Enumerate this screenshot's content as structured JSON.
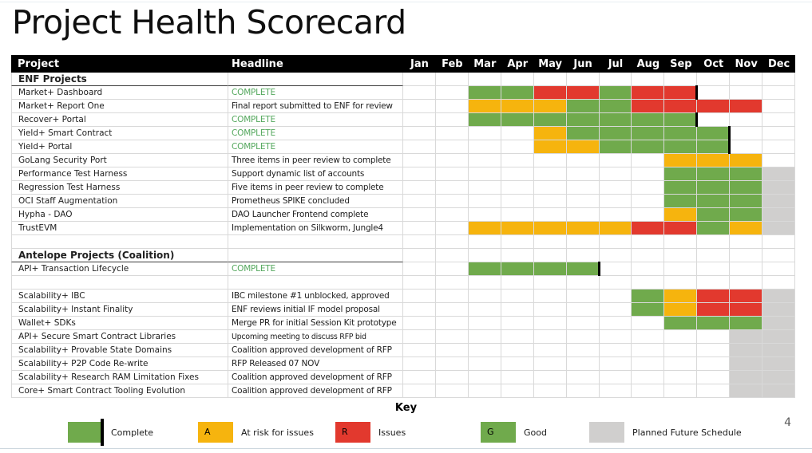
{
  "title": "Project Health Scorecard",
  "page_number": "4",
  "table": {
    "columns": {
      "project": "Project",
      "headline": "Headline"
    },
    "months": [
      "Jan",
      "Feb",
      "Mar",
      "Apr",
      "May",
      "Jun",
      "Jul",
      "Aug",
      "Sep",
      "Oct",
      "Nov",
      "Dec"
    ],
    "status_colors": {
      "G": "#70AA4C",
      "A": "#F6B40E",
      "R": "#E2392E",
      "P": "#D0CFCE"
    },
    "status_meanings": {
      "G": "Good / Complete",
      "A": "At risk for issues",
      "R": "Issues",
      "P": "Planned Future Schedule"
    },
    "rows": [
      {
        "type": "section",
        "project": "ENF Projects"
      },
      {
        "type": "item",
        "project": "Market+ Dashboard",
        "headline": "COMPLETE",
        "headline_style": "complete",
        "cells": [
          "",
          "",
          "G",
          "G",
          "R",
          "R",
          "G",
          "R",
          "R",
          "",
          "",
          ""
        ],
        "milestone_after_index": 8
      },
      {
        "type": "item",
        "project": "Market+ Report One",
        "headline": "Final report submitted to ENF for review",
        "cells": [
          "",
          "",
          "A",
          "A",
          "A",
          "G",
          "G",
          "R",
          "R",
          "R",
          "R",
          ""
        ],
        "milestone_after_index": null
      },
      {
        "type": "item",
        "project": "Recover+ Portal",
        "headline": "COMPLETE",
        "headline_style": "complete",
        "cells": [
          "",
          "",
          "G",
          "G",
          "G",
          "G",
          "G",
          "G",
          "G",
          "",
          "",
          ""
        ],
        "milestone_after_index": 8
      },
      {
        "type": "item",
        "project": "Yield+ Smart Contract",
        "headline": "COMPLETE",
        "headline_style": "complete",
        "cells": [
          "",
          "",
          "",
          "",
          "A",
          "G",
          "G",
          "G",
          "G",
          "G",
          "",
          ""
        ],
        "milestone_after_index": 9
      },
      {
        "type": "item",
        "project": "Yield+ Portal",
        "headline": "COMPLETE",
        "headline_style": "complete",
        "cells": [
          "",
          "",
          "",
          "",
          "A",
          "A",
          "G",
          "G",
          "G",
          "G",
          "",
          ""
        ],
        "milestone_after_index": 9
      },
      {
        "type": "item",
        "project": "GoLang Security Port",
        "headline": "Three items in peer review to complete",
        "cells": [
          "",
          "",
          "",
          "",
          "",
          "",
          "",
          "",
          "A",
          "A",
          "A",
          ""
        ],
        "milestone_after_index": null
      },
      {
        "type": "item",
        "project": "Performance Test Harness",
        "headline": "Support dynamic list of accounts",
        "cells": [
          "",
          "",
          "",
          "",
          "",
          "",
          "",
          "",
          "G",
          "G",
          "G",
          "P"
        ],
        "milestone_after_index": null
      },
      {
        "type": "item",
        "project": "Regression Test Harness",
        "headline": "Five items in peer review to complete",
        "cells": [
          "",
          "",
          "",
          "",
          "",
          "",
          "",
          "",
          "G",
          "G",
          "G",
          "P"
        ],
        "milestone_after_index": null
      },
      {
        "type": "item",
        "project": "OCI Staff Augmentation",
        "headline": "Prometheus SPIKE concluded",
        "cells": [
          "",
          "",
          "",
          "",
          "",
          "",
          "",
          "",
          "G",
          "G",
          "G",
          "P"
        ],
        "milestone_after_index": null
      },
      {
        "type": "item",
        "project": "Hypha - DAO",
        "headline": "DAO Launcher Frontend complete",
        "cells": [
          "",
          "",
          "",
          "",
          "",
          "",
          "",
          "",
          "A",
          "G",
          "G",
          "P"
        ],
        "milestone_after_index": null
      },
      {
        "type": "item",
        "project": "TrustEVM",
        "headline": "Implementation on Silkworm, Jungle4",
        "cells": [
          "",
          "",
          "A",
          "A",
          "A",
          "A",
          "A",
          "R",
          "R",
          "G",
          "A",
          "P"
        ],
        "milestone_after_index": null
      },
      {
        "type": "empty"
      },
      {
        "type": "section",
        "project": "Antelope Projects (Coalition)"
      },
      {
        "type": "item",
        "project": "API+ Transaction Lifecycle",
        "headline": "COMPLETE",
        "headline_style": "complete",
        "cells": [
          "",
          "",
          "G",
          "G",
          "G",
          "G",
          "",
          "",
          "",
          "",
          "",
          ""
        ],
        "milestone_after_index": 5
      },
      {
        "type": "empty"
      },
      {
        "type": "item",
        "project": "Scalability+ IBC",
        "headline": "IBC milestone #1 unblocked, approved",
        "cells": [
          "",
          "",
          "",
          "",
          "",
          "",
          "",
          "G",
          "A",
          "R",
          "R",
          "P"
        ],
        "milestone_after_index": null
      },
      {
        "type": "item",
        "project": "Scalability+ Instant Finality",
        "headline": "ENF reviews initial IF model proposal",
        "cells": [
          "",
          "",
          "",
          "",
          "",
          "",
          "",
          "G",
          "A",
          "R",
          "R",
          "P"
        ],
        "milestone_after_index": null
      },
      {
        "type": "item",
        "project": "Wallet+ SDKs",
        "headline": "Merge PR for initial Session Kit prototype",
        "cells": [
          "",
          "",
          "",
          "",
          "",
          "",
          "",
          "",
          "G",
          "G",
          "G",
          "P"
        ],
        "milestone_after_index": null
      },
      {
        "type": "item",
        "project": "API+ Secure Smart Contract Libraries",
        "headline": "Upcoming meeting to discuss RFP bid",
        "headline_style": "small",
        "cells": [
          "",
          "",
          "",
          "",
          "",
          "",
          "",
          "",
          "",
          "",
          "P",
          "P"
        ],
        "milestone_after_index": null
      },
      {
        "type": "item",
        "project": "Scalability+ Provable State Domains",
        "headline": "Coalition approved development of RFP",
        "cells": [
          "",
          "",
          "",
          "",
          "",
          "",
          "",
          "",
          "",
          "",
          "P",
          "P"
        ],
        "milestone_after_index": null
      },
      {
        "type": "item",
        "project": "Scalability+ P2P Code Re-write",
        "headline": "RFP Released 07 NOV",
        "cells": [
          "",
          "",
          "",
          "",
          "",
          "",
          "",
          "",
          "",
          "",
          "P",
          "P"
        ],
        "milestone_after_index": null
      },
      {
        "type": "item",
        "project": "Scalability+ Research RAM Limitation Fixes",
        "headline": "Coalition approved development of RFP",
        "cells": [
          "",
          "",
          "",
          "",
          "",
          "",
          "",
          "",
          "",
          "",
          "P",
          "P"
        ],
        "milestone_after_index": null
      },
      {
        "type": "item",
        "project": "Core+ Smart Contract Tooling Evolution",
        "headline": "Coalition approved development of RFP",
        "cells": [
          "",
          "",
          "",
          "",
          "",
          "",
          "",
          "",
          "",
          "",
          "P",
          "P"
        ],
        "milestone_after_index": null
      }
    ]
  },
  "key": {
    "title": "Key",
    "items": [
      {
        "label": "Complete",
        "color": "#70AA4C",
        "letter": "",
        "milestone_marker": true
      },
      {
        "label": "At risk for issues",
        "color": "#F6B40E",
        "letter": "A",
        "milestone_marker": false
      },
      {
        "label": "Issues",
        "color": "#E2392E",
        "letter": "R",
        "milestone_marker": false
      },
      {
        "label": "Good",
        "color": "#70AA4C",
        "letter": "G",
        "milestone_marker": false
      },
      {
        "label": "Planned Future Schedule",
        "color": "#D0CFCE",
        "letter": "",
        "milestone_marker": false
      }
    ]
  }
}
